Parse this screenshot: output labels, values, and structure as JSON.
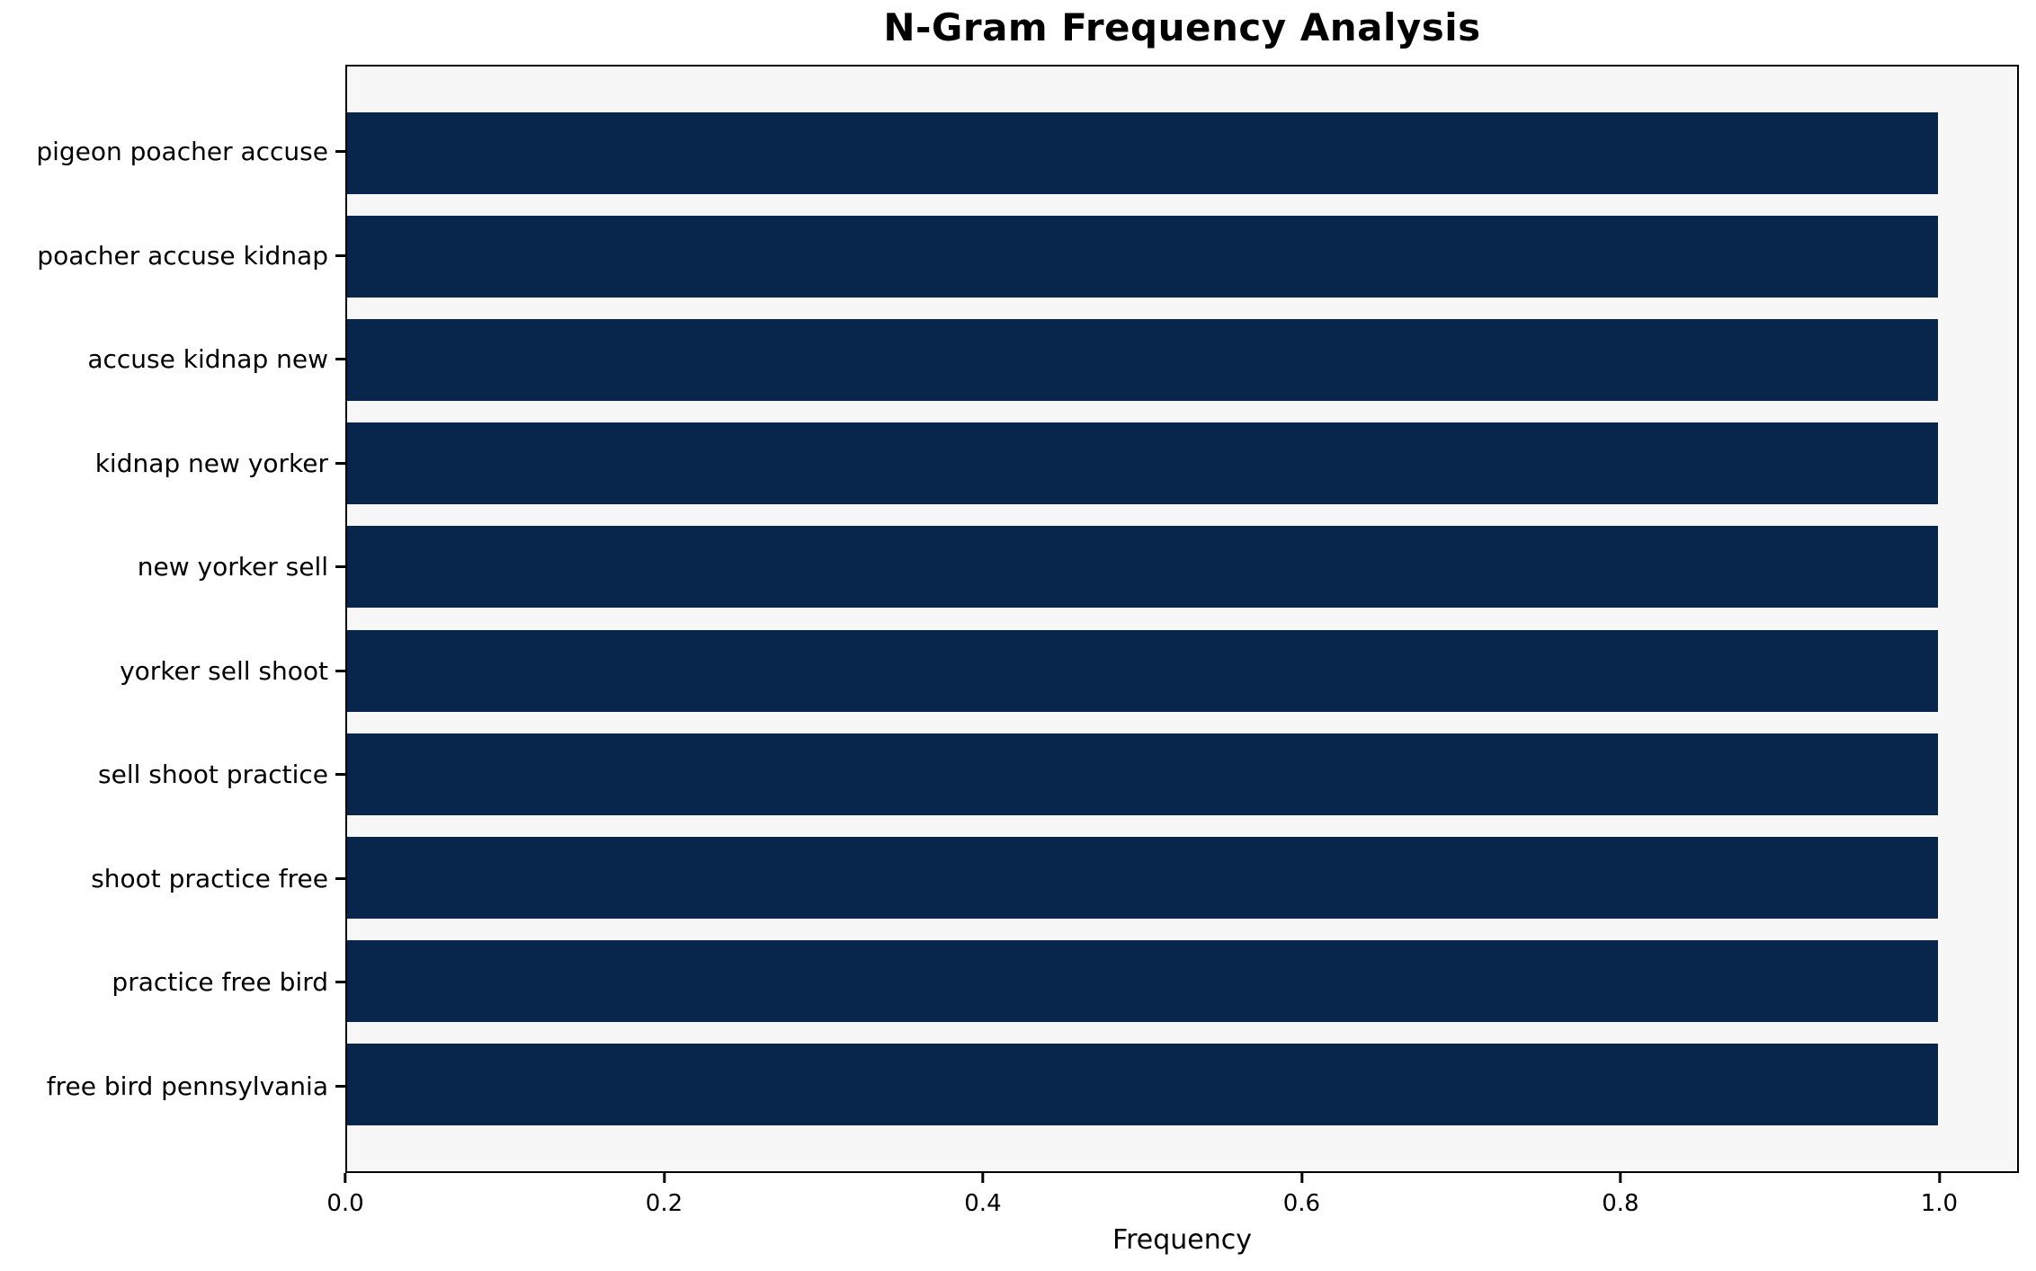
{
  "chart_data": {
    "type": "bar",
    "orientation": "horizontal",
    "title": "N-Gram Frequency Analysis",
    "xlabel": "Frequency",
    "ylabel": "",
    "categories": [
      "pigeon poacher accuse",
      "poacher accuse kidnap",
      "accuse kidnap new",
      "kidnap new yorker",
      "new yorker sell",
      "yorker sell shoot",
      "sell shoot practice",
      "shoot practice free",
      "practice free bird",
      "free bird pennsylvania"
    ],
    "values": [
      1.0,
      1.0,
      1.0,
      1.0,
      1.0,
      1.0,
      1.0,
      1.0,
      1.0,
      1.0
    ],
    "xlim": [
      0,
      1.05
    ],
    "x_ticks": [
      0.0,
      0.2,
      0.4,
      0.6,
      0.8,
      1.0
    ],
    "x_tick_labels": [
      "0.0",
      "0.2",
      "0.4",
      "0.6",
      "0.8",
      "1.0"
    ],
    "grid": false,
    "legend": null,
    "bar_color": "#08254c",
    "plot_background": "#f7f7f7",
    "figure_background": "#ffffff",
    "frame_color": "#000000"
  }
}
